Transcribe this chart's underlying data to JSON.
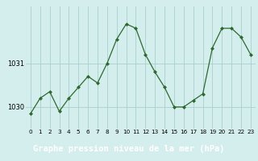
{
  "x": [
    0,
    1,
    2,
    3,
    4,
    5,
    6,
    7,
    8,
    9,
    10,
    11,
    12,
    13,
    14,
    15,
    16,
    17,
    18,
    19,
    20,
    21,
    22,
    23
  ],
  "y": [
    1029.85,
    1030.2,
    1030.35,
    1029.9,
    1030.2,
    1030.45,
    1030.7,
    1030.55,
    1031.0,
    1031.55,
    1031.9,
    1031.8,
    1031.2,
    1030.8,
    1030.45,
    1030.0,
    1030.0,
    1030.15,
    1030.3,
    1031.35,
    1031.8,
    1031.8,
    1031.6,
    1031.2
  ],
  "line_color": "#2d6a2d",
  "marker_color": "#2d6a2d",
  "bg_color": "#d4eeed",
  "grid_color": "#aacece",
  "ylabel_ticks": [
    1030,
    1031
  ],
  "ylim": [
    1029.5,
    1032.3
  ],
  "xlim": [
    -0.5,
    23.5
  ],
  "bottom_bar_color": "#2d7a2d",
  "bottom_text_color": "#ffffff",
  "xlabel": "Graphe pression niveau de la mer (hPa)",
  "title_fontsize": 7.5,
  "tick_fontsize": 6.0,
  "xtick_fontsize": 5.2
}
